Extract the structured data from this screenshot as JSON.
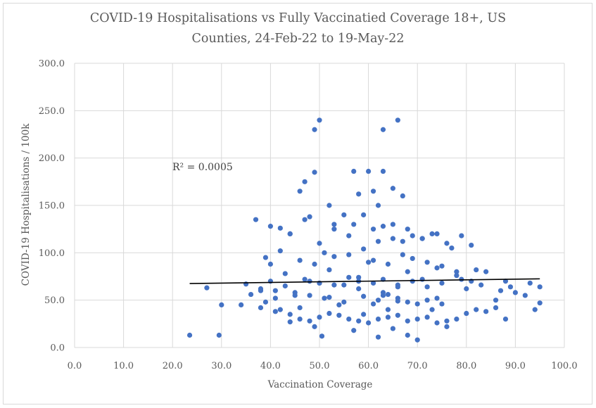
{
  "chart_data": {
    "type": "scatter",
    "title_line1": "COVID-19 Hospitalisations vs Fully Vaccinatied Coverage 18+, US",
    "title_line2": "Counties, 24-Feb-22 to 19-May-22",
    "xlabel": "Vaccination Coverage",
    "ylabel": "COVID-19 Hospitalisations / 100k",
    "xlim": [
      0,
      100
    ],
    "ylim": [
      0,
      300
    ],
    "x_ticks": [
      "0.0",
      "10.0",
      "20.0",
      "30.0",
      "40.0",
      "50.0",
      "60.0",
      "70.0",
      "80.0",
      "90.0",
      "100.0"
    ],
    "y_ticks": [
      "0.0",
      "50.0",
      "100.0",
      "150.0",
      "200.0",
      "250.0",
      "300.0"
    ],
    "grid": true,
    "point_color": "#4472c4",
    "trendline": {
      "x": [
        23.5,
        95
      ],
      "y": [
        67.5,
        72.5
      ],
      "color": "#000000"
    },
    "annotation": "R² = 0.0005",
    "series": [
      {
        "x": [
          23.5,
          27,
          29.5,
          30,
          34,
          35,
          38,
          39,
          41,
          42,
          44,
          46,
          48,
          49,
          50,
          50.5,
          52,
          54,
          57,
          58,
          59,
          61,
          62,
          63,
          64,
          65,
          66,
          68,
          70,
          73,
          75,
          76,
          80,
          86,
          89,
          92,
          95,
          40,
          43,
          45,
          48,
          52,
          55,
          58,
          60,
          63,
          66,
          68,
          71,
          74,
          78,
          81,
          84,
          87,
          90,
          41,
          44,
          47,
          50,
          53,
          56,
          59,
          62,
          65,
          68,
          71,
          74,
          77,
          39,
          42,
          46,
          49,
          51,
          53,
          56,
          59,
          61,
          64,
          67,
          69,
          72,
          75,
          78,
          82,
          46,
          47,
          49,
          52,
          57,
          58,
          60,
          61,
          62,
          63,
          65,
          67,
          37,
          40,
          42,
          44,
          48,
          53,
          55,
          57,
          61,
          63,
          65,
          67,
          69,
          71,
          73,
          76,
          79,
          81,
          38,
          45,
          51,
          55,
          59,
          62,
          64,
          66,
          68,
          70,
          72,
          74,
          49,
          50,
          63,
          66,
          36,
          38,
          41,
          44,
          46,
          48,
          50,
          52,
          54,
          56,
          58,
          60,
          62,
          64,
          66,
          68,
          70,
          72,
          74,
          76,
          78,
          80,
          82,
          84,
          86,
          88,
          94,
          40,
          43,
          47,
          50,
          53,
          56,
          58,
          61,
          63,
          66,
          69,
          72,
          75,
          79,
          83,
          88,
          93,
          95
        ],
        "y": [
          13,
          63,
          13,
          45,
          45,
          67,
          62,
          48,
          52,
          40,
          27,
          42,
          55,
          22,
          68,
          12,
          53,
          45,
          18,
          62,
          35,
          46,
          11,
          55,
          40,
          20,
          49,
          13,
          8,
          40,
          46,
          22,
          62,
          50,
          64,
          55,
          47,
          88,
          78,
          55,
          70,
          82,
          66,
          74,
          90,
          58,
          64,
          80,
          72,
          84,
          76,
          70,
          80,
          60,
          58,
          60,
          120,
          135,
          110,
          125,
          118,
          140,
          112,
          130,
          125,
          115,
          120,
          105,
          95,
          102,
          92,
          88,
          100,
          96,
          98,
          104,
          92,
          88,
          98,
          94,
          90,
          86,
          80,
          82,
          165,
          175,
          185,
          150,
          186,
          162,
          186,
          165,
          150,
          186,
          168,
          160,
          135,
          128,
          126,
          120,
          138,
          130,
          140,
          130,
          125,
          128,
          115,
          112,
          118,
          115,
          120,
          110,
          118,
          108,
          60,
          58,
          52,
          48,
          54,
          50,
          56,
          52,
          48,
          46,
          50,
          52,
          230,
          240,
          230,
          240,
          56,
          42,
          38,
          35,
          30,
          28,
          32,
          36,
          34,
          30,
          28,
          26,
          30,
          32,
          34,
          28,
          30,
          32,
          26,
          28,
          30,
          36,
          40,
          38,
          42,
          30,
          40,
          70,
          65,
          72,
          68,
          66,
          74,
          70,
          68,
          72,
          66,
          70,
          64,
          68,
          72,
          66,
          70,
          68,
          64
        ]
      }
    ]
  }
}
